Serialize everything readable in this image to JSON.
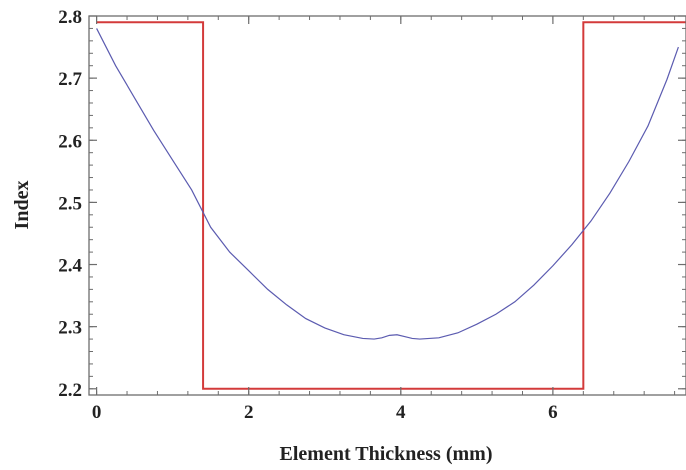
{
  "chart_data": {
    "type": "line",
    "title": "",
    "xlabel": "Element Thickness (mm)",
    "ylabel": "Index",
    "xlim": [
      -0.1,
      7.75
    ],
    "ylim": [
      2.19,
      2.8
    ],
    "grid": false,
    "legend": "none",
    "x_ticks": [
      0,
      2,
      4,
      6
    ],
    "y_ticks": [
      2.2,
      2.3,
      2.4,
      2.5,
      2.6,
      2.7,
      2.8
    ],
    "y_tick_labels": [
      "2.2",
      "2.3",
      "2.4",
      "2.5",
      "2.6",
      "2.7",
      "2.8"
    ],
    "series": [
      {
        "color": "#d33a3a",
        "x": [
          0,
          1.4,
          1.4,
          6.4,
          6.4,
          7.75
        ],
        "y": [
          2.79,
          2.79,
          2.2,
          2.2,
          2.79,
          2.79
        ]
      },
      {
        "color": "#5b5bb0",
        "x": [
          0,
          0.25,
          0.5,
          0.75,
          1.0,
          1.25,
          1.5,
          1.75,
          2.0,
          2.25,
          2.5,
          2.75,
          3.0,
          3.25,
          3.5,
          3.65,
          3.75,
          3.85,
          3.95,
          4.05,
          4.15,
          4.25,
          4.5,
          4.75,
          5.0,
          5.25,
          5.5,
          5.75,
          6.0,
          6.25,
          6.5,
          6.75,
          7.0,
          7.25,
          7.5,
          7.65
        ],
        "y": [
          2.78,
          2.72,
          2.668,
          2.616,
          2.568,
          2.52,
          2.46,
          2.42,
          2.39,
          2.36,
          2.335,
          2.313,
          2.298,
          2.287,
          2.281,
          2.28,
          2.282,
          2.286,
          2.287,
          2.284,
          2.281,
          2.28,
          2.282,
          2.29,
          2.304,
          2.32,
          2.34,
          2.367,
          2.398,
          2.432,
          2.47,
          2.515,
          2.566,
          2.623,
          2.698,
          2.75
        ]
      }
    ]
  }
}
